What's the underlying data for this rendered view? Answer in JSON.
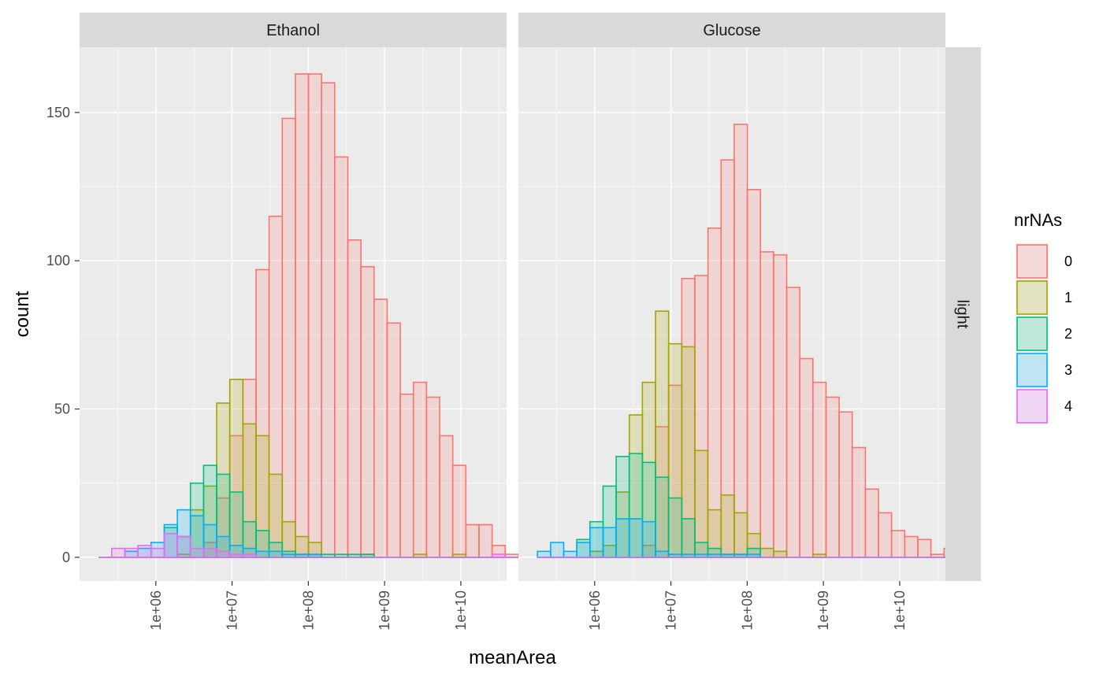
{
  "chart_data": {
    "type": "histogram",
    "xlabel": "meanArea",
    "ylabel": "count",
    "x_scale": "log10",
    "x_tick_labels": [
      "1e+06",
      "1e+07",
      "1e+08",
      "1e+09",
      "1e+10"
    ],
    "x_tick_log10": [
      6,
      7,
      8,
      9,
      10
    ],
    "xlim_log10": [
      5.0,
      10.6
    ],
    "ylim": [
      -8,
      172
    ],
    "y_ticks": [
      0,
      50,
      100,
      150
    ],
    "row_facet_label": "light",
    "legend": {
      "title": "nrNAs",
      "position": "right",
      "entries": [
        "0",
        "1",
        "2",
        "3",
        "4"
      ]
    },
    "series_colors": {
      "0": "#F8766D",
      "1": "#A3A500",
      "2": "#00BF7D",
      "3": "#00B0F6",
      "4": "#E76BF3"
    },
    "fill_alpha": 0.2,
    "panels": [
      {
        "name": "Ethanol",
        "bins_log10_min": 5.25,
        "bin_width_log10": 0.172,
        "series": [
          {
            "name": "0",
            "counts": [
              0,
              0,
              0,
              0,
              0,
              0,
              0,
              0,
              5,
              20,
              41,
              60,
              97,
              115,
              148,
              163,
              163,
              160,
              135,
              107,
              98,
              87,
              79,
              55,
              59,
              54,
              41,
              31,
              11,
              11,
              4,
              1,
              0
            ]
          },
          {
            "name": "1",
            "counts": [
              0,
              0,
              0,
              0,
              0,
              0,
              1,
              16,
              24,
              52,
              60,
              45,
              41,
              28,
              12,
              7,
              5,
              0,
              0,
              0,
              1,
              0,
              0,
              0,
              1,
              0,
              0,
              1,
              0,
              0,
              0,
              0,
              0
            ]
          },
          {
            "name": "2",
            "counts": [
              0,
              0,
              0,
              0,
              0,
              10,
              7,
              25,
              31,
              28,
              22,
              12,
              9,
              5,
              2,
              1,
              1,
              1,
              1,
              1,
              1,
              0,
              0,
              0,
              0,
              0,
              0,
              0,
              0,
              0,
              0,
              0,
              0
            ]
          },
          {
            "name": "3",
            "counts": [
              0,
              0,
              2,
              3,
              5,
              11,
              16,
              14,
              11,
              7,
              4,
              3,
              2,
              2,
              1,
              1,
              1,
              0,
              0,
              0,
              0,
              0,
              0,
              0,
              0,
              0,
              0,
              0,
              0,
              0,
              0,
              0,
              0
            ]
          },
          {
            "name": "4",
            "counts": [
              0,
              3,
              3,
              4,
              3,
              8,
              7,
              3,
              3,
              2,
              1,
              1,
              0,
              0,
              0,
              0,
              0,
              0,
              0,
              0,
              0,
              0,
              0,
              0,
              0,
              0,
              0,
              0,
              0,
              0,
              1,
              0,
              0
            ]
          }
        ]
      },
      {
        "name": "Glucose",
        "bins_log10_min": 5.25,
        "bin_width_log10": 0.172,
        "series": [
          {
            "name": "0",
            "counts": [
              0,
              0,
              0,
              0,
              0,
              0,
              0,
              0,
              4,
              44,
              58,
              94,
              95,
              111,
              134,
              146,
              124,
              103,
              102,
              91,
              67,
              59,
              54,
              49,
              37,
              23,
              15,
              9,
              7,
              6,
              1,
              3,
              1
            ]
          },
          {
            "name": "1",
            "counts": [
              0,
              0,
              0,
              0,
              2,
              4,
              22,
              48,
              59,
              83,
              72,
              71,
              36,
              16,
              21,
              15,
              8,
              3,
              2,
              0,
              0,
              1,
              0,
              0,
              0,
              0,
              0,
              0,
              0,
              0,
              0,
              0,
              0
            ]
          },
          {
            "name": "2",
            "counts": [
              0,
              0,
              0,
              6,
              12,
              24,
              34,
              35,
              32,
              27,
              20,
              13,
              5,
              3,
              1,
              1,
              3,
              0,
              0,
              0,
              0,
              0,
              0,
              0,
              0,
              0,
              0,
              0,
              0,
              0,
              0,
              0,
              0
            ]
          },
          {
            "name": "3",
            "counts": [
              2,
              5,
              2,
              5,
              10,
              10,
              13,
              13,
              12,
              2,
              1,
              1,
              1,
              1,
              1,
              1,
              1,
              0,
              0,
              0,
              0,
              0,
              0,
              0,
              0,
              0,
              0,
              0,
              0,
              0,
              0,
              0,
              0
            ]
          },
          {
            "name": "4",
            "counts": [
              0,
              0,
              0,
              0,
              0,
              0,
              0,
              0,
              0,
              0,
              0,
              0,
              0,
              0,
              0,
              0,
              0,
              0,
              0,
              0,
              0,
              0,
              0,
              0,
              0,
              0,
              0,
              0,
              0,
              0,
              0,
              0,
              0
            ]
          }
        ]
      }
    ]
  }
}
